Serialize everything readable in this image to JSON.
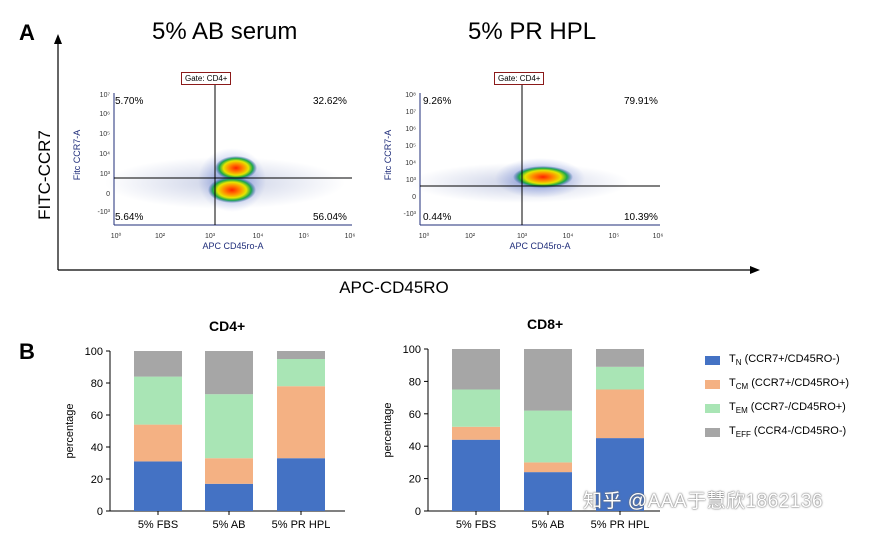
{
  "panel_a": {
    "letter": "A",
    "big_y_label": "FITC-CCR7",
    "big_x_label": "APC-CD45RO",
    "plots": [
      {
        "title": "5% AB serum",
        "gate": "Gate: CD4+",
        "ylabel": "Fitc CCR7-A",
        "xlabel": "APC CD45ro-A",
        "q_ul": "5.70%",
        "q_ur": "32.62%",
        "q_ll": "5.64%",
        "q_lr": "56.04%",
        "y_ticks": [
          "10⁷",
          "10⁶",
          "10⁵",
          "10⁴",
          "10³",
          "0",
          "-10³"
        ],
        "x_ticks": [
          "10⁰",
          "10²",
          "10³",
          "10⁴",
          "10⁵",
          "10⁶"
        ]
      },
      {
        "title": "5% PR HPL",
        "gate": "Gate: CD4+",
        "ylabel": "Fitc CCR7-A",
        "xlabel": "APC CD45ro-A",
        "q_ul": "9.26%",
        "q_ur": "79.91%",
        "q_ll": "0.44%",
        "q_lr": "10.39%",
        "y_ticks": [
          "10⁸",
          "10⁷",
          "10⁶",
          "10⁵",
          "10⁴",
          "10³",
          "0",
          "-10³"
        ],
        "x_ticks": [
          "10⁰",
          "10²",
          "10³",
          "10⁴",
          "10⁵",
          "10⁶"
        ]
      }
    ]
  },
  "panel_b": {
    "letter": "B",
    "legend": [
      {
        "main": "T",
        "sub": "N",
        "rest": " (CCR7+/CD45RO-)",
        "color": "#4472c4"
      },
      {
        "main": "T",
        "sub": "CM",
        "rest": " (CCR7+/CD45RO+)",
        "color": "#f4b183"
      },
      {
        "main": "T",
        "sub": "EM",
        "rest": " (CCR7-/CD45RO+)",
        "color": "#a9e5b5"
      },
      {
        "main": "T",
        "sub": "EFF",
        "rest": " (CCR4-/CD45RO-)",
        "color": "#a6a6a6"
      }
    ]
  },
  "chart_data": [
    {
      "type": "bar",
      "stacked": true,
      "title": "CD4+",
      "ylabel": "percentage",
      "ylim": [
        0,
        100
      ],
      "y_ticks": [
        0,
        20,
        40,
        60,
        80,
        100
      ],
      "categories": [
        "5% FBS",
        "5% AB",
        "5% PR HPL"
      ],
      "series": [
        {
          "name": "TN (CCR7+/CD45RO-)",
          "color": "#4472c4",
          "values": [
            31,
            17,
            33
          ]
        },
        {
          "name": "TCM (CCR7+/CD45RO+)",
          "color": "#f4b183",
          "values": [
            23,
            16,
            45
          ]
        },
        {
          "name": "TEM (CCR7-/CD45RO+)",
          "color": "#a9e5b5",
          "values": [
            30,
            40,
            17
          ]
        },
        {
          "name": "TEFF (CCR4-/CD45RO-)",
          "color": "#a6a6a6",
          "values": [
            16,
            27,
            5
          ]
        }
      ]
    },
    {
      "type": "bar",
      "stacked": true,
      "title": "CD8+",
      "ylabel": "percentage",
      "ylim": [
        0,
        100
      ],
      "y_ticks": [
        0,
        20,
        40,
        60,
        80,
        100
      ],
      "categories": [
        "5% FBS",
        "5% AB",
        "5% PR HPL"
      ],
      "series": [
        {
          "name": "TN (CCR7+/CD45RO-)",
          "color": "#4472c4",
          "values": [
            44,
            24,
            45
          ]
        },
        {
          "name": "TCM (CCR7+/CD45RO+)",
          "color": "#f4b183",
          "values": [
            8,
            6,
            30
          ]
        },
        {
          "name": "TEM (CCR7-/CD45RO+)",
          "color": "#a9e5b5",
          "values": [
            23,
            32,
            14
          ]
        },
        {
          "name": "TEFF (CCR4-/CD45RO-)",
          "color": "#a6a6a6",
          "values": [
            25,
            38,
            11
          ]
        }
      ]
    }
  ],
  "watermark": "知乎 @AAA于慧欣1862136"
}
